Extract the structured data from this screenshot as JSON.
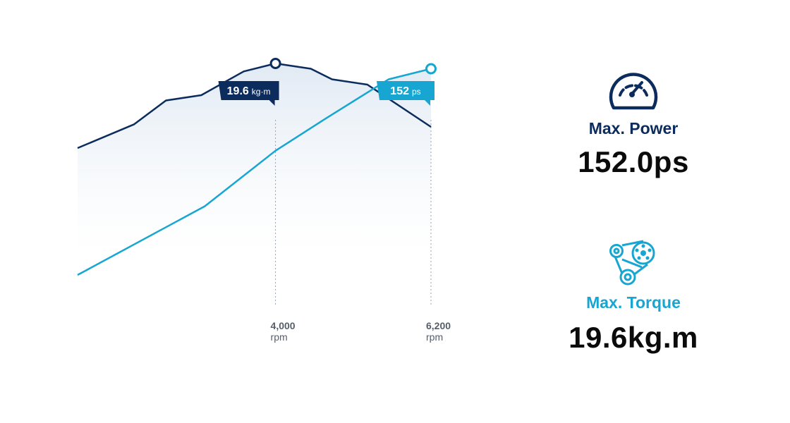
{
  "chart_data": {
    "type": "line",
    "x_ticks": [
      {
        "value": 4000,
        "label": "4,000",
        "unit": "rpm"
      },
      {
        "value": 6200,
        "label": "6,200",
        "unit": "rpm"
      }
    ],
    "xlim": [
      1200,
      6200
    ],
    "series": [
      {
        "key": "torque",
        "color": "#0b2c5c",
        "x": [
          1200,
          2000,
          2450,
          2950,
          3550,
          4000,
          4500,
          4800,
          5300,
          6200
        ],
        "y": [
          0.6,
          0.69,
          0.78,
          0.8,
          0.89,
          0.92,
          0.9,
          0.86,
          0.84,
          0.68
        ]
      },
      {
        "key": "power",
        "color": "#17a6d2",
        "x": [
          1200,
          3000,
          4000,
          4700,
          5600,
          6200
        ],
        "y": [
          0.12,
          0.38,
          0.59,
          0.71,
          0.86,
          0.9
        ]
      }
    ],
    "y_normalized": true,
    "annotations": [
      {
        "series": "torque",
        "x": 4000,
        "value": "19.6",
        "unit": "kg·m",
        "color": "#0b2c5c"
      },
      {
        "series": "power",
        "x": 6200,
        "value": "152",
        "unit": "ps",
        "color": "#17a6d2"
      }
    ]
  },
  "stats": {
    "power": {
      "icon": "speedometer-icon",
      "label": "Max. Power",
      "value": "152.0ps",
      "color": "#0b2c5c"
    },
    "torque": {
      "icon": "belt-pulley-icon",
      "label": "Max. Torque",
      "value": "19.6kg.m",
      "color": "#17a6d2"
    }
  }
}
